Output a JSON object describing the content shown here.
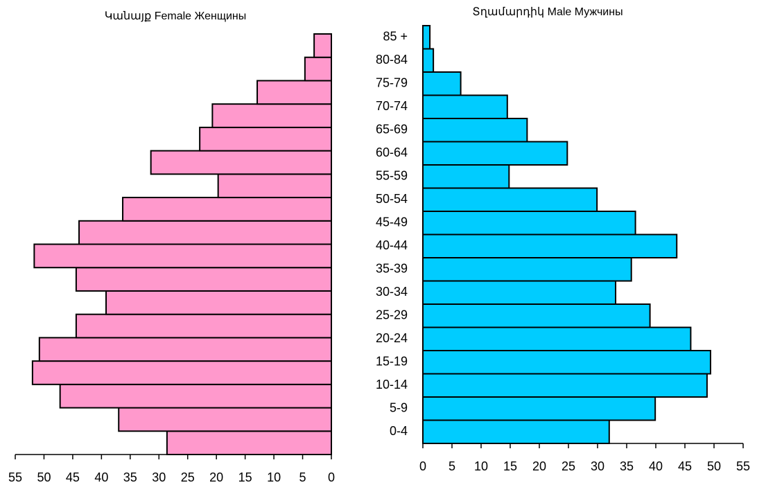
{
  "chart_data": [
    {
      "type": "bar",
      "orientation": "horizontal",
      "title": "Կանայք Female Женщины",
      "series": [
        {
          "name": "Female",
          "color": "#ff99cc",
          "values": [
            28.6,
            37.0,
            47.2,
            52.0,
            50.8,
            44.4,
            39.2,
            44.4,
            51.7,
            43.9,
            36.3,
            19.7,
            31.4,
            22.9,
            20.7,
            12.9,
            4.6,
            3.0
          ]
        }
      ],
      "xlim": [
        0,
        55
      ],
      "xticks": [
        0,
        5,
        10,
        15,
        20,
        25,
        30,
        35,
        40,
        45,
        50,
        55
      ],
      "xreversed": true
    },
    {
      "type": "bar",
      "orientation": "horizontal",
      "title": "Տղամարդիկ Male Мужчины",
      "categories": [
        "0-4",
        "5-9",
        "10-14",
        "15-19",
        "20-24",
        "25-29",
        "30-34",
        "35-39",
        "40-44",
        "45-49",
        "50-54",
        "55-59",
        "60-64",
        "65-69",
        "70-74",
        "75-79",
        "80-84",
        "85 +"
      ],
      "series": [
        {
          "name": "Male",
          "color": "#00ccff",
          "values": [
            32.0,
            39.9,
            48.8,
            49.4,
            46.0,
            39.0,
            33.1,
            35.8,
            43.6,
            36.5,
            29.9,
            14.8,
            24.8,
            17.9,
            14.5,
            6.5,
            1.8,
            1.2
          ]
        }
      ],
      "xlim": [
        0,
        55
      ],
      "xticks": [
        0,
        5,
        10,
        15,
        20,
        25,
        30,
        35,
        40,
        45,
        50,
        55
      ],
      "xreversed": false
    }
  ]
}
